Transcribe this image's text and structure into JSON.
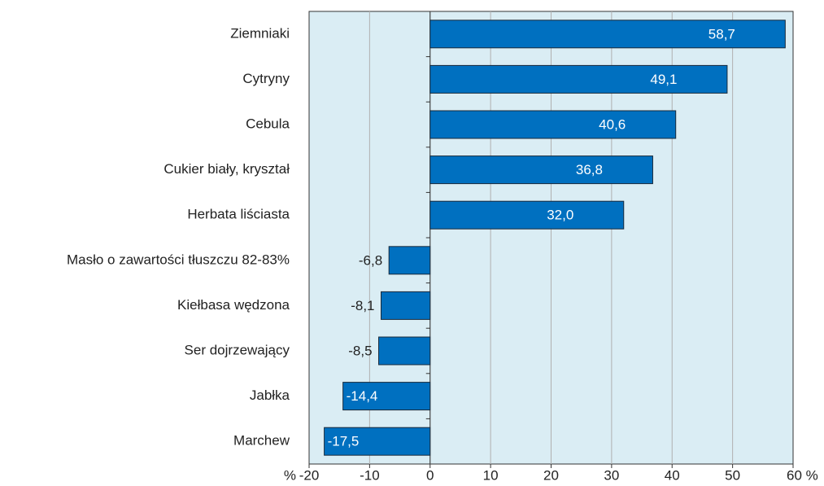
{
  "chart_data": {
    "type": "bar",
    "orientation": "horizontal",
    "categories": [
      "Ziemniaki",
      "Cytryny",
      "Cebula",
      "Cukier biały, kryształ",
      "Herbata liściasta",
      "Masło o zawartości tłuszczu 82-83%",
      "Kiełbasa wędzona",
      "Ser dojrzewający",
      "Jabłka",
      "Marchew"
    ],
    "values": [
      58.7,
      49.1,
      40.6,
      36.8,
      32.0,
      -6.8,
      -8.1,
      -8.5,
      -14.4,
      -17.5
    ],
    "value_labels": [
      "58,7",
      "49,1",
      "40,6",
      "36,8",
      "32,0",
      "-6,8",
      "-8,1",
      "-8,5",
      "-14,4",
      "-17,5"
    ],
    "color": "#0070c0",
    "xlabel": "%",
    "xlim": [
      -20,
      60
    ],
    "xticks": [
      -20,
      -10,
      0,
      10,
      20,
      30,
      40,
      50,
      {
        "value": 60,
        "label": "60 %"
      }
    ],
    "grid": true
  }
}
